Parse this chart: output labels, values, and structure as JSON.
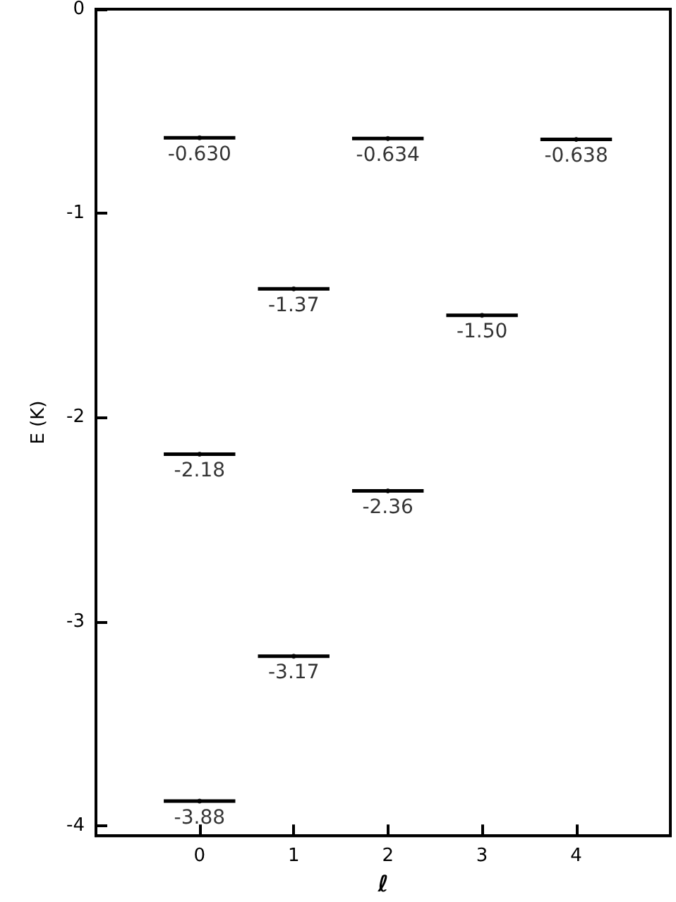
{
  "chart_data": {
    "type": "scatter",
    "xlabel": "ℓ",
    "ylabel": "E (K)",
    "x": [
      0,
      0,
      0,
      1,
      1,
      2,
      2,
      3,
      4
    ],
    "values": [
      -0.63,
      -2.18,
      -3.88,
      -1.37,
      -3.17,
      -0.634,
      -2.36,
      -1.5,
      -0.638
    ],
    "value_labels": [
      "-0.630",
      "-2.18",
      "-3.88",
      "-1.37",
      "-3.17",
      "-0.634",
      "-2.36",
      "-1.50",
      "-0.638"
    ],
    "xerrors": [
      0.38,
      0.38,
      0.38,
      0.38,
      0.38,
      0.38,
      0.38,
      0.38,
      0.38
    ],
    "color": "#000000",
    "xlim": [
      -1.1,
      5
    ],
    "xticks": [
      0,
      1,
      2,
      3,
      4
    ],
    "ylim": [
      -4.05,
      0
    ],
    "yticks": [
      0,
      -1,
      -2,
      -3,
      -4
    ],
    "grid": false
  }
}
